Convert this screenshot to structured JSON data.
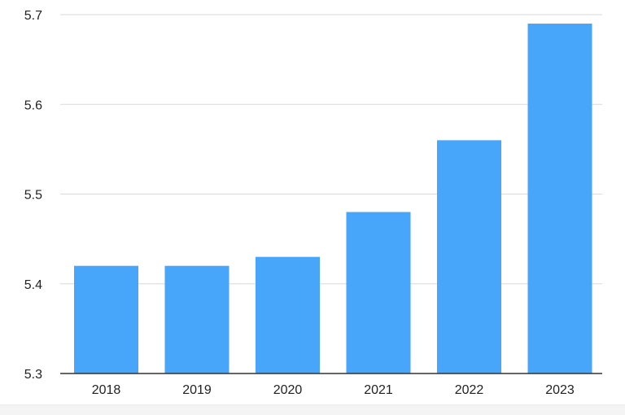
{
  "chart_data": {
    "type": "bar",
    "title": "",
    "xlabel": "",
    "ylabel": "",
    "categories": [
      "2018",
      "2019",
      "2020",
      "2021",
      "2022",
      "2023"
    ],
    "values": [
      5.42,
      5.42,
      5.43,
      5.48,
      5.56,
      5.69
    ],
    "ylim": [
      5.3,
      5.7
    ],
    "yticks": [
      "5.3",
      "5.4",
      "5.5",
      "5.6",
      "5.7"
    ],
    "grid": true,
    "legend": "none",
    "colors": {
      "bar": "#47a6fa",
      "grid": "#d9d9d9",
      "axis": "#333333"
    }
  }
}
